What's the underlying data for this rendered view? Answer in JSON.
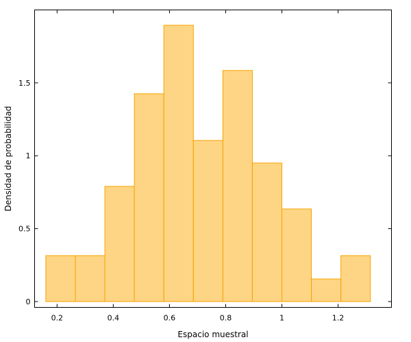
{
  "chart_data": {
    "type": "bar",
    "subtype": "histogram",
    "xlabel": "Espacio muestral",
    "ylabel": "Densidad de probabilidad",
    "xlim": [
      0.12,
      1.39
    ],
    "ylim": [
      -0.04,
      2.0
    ],
    "xticks": [
      0.2,
      0.4,
      0.6,
      0.8,
      1.0,
      1.2
    ],
    "xtick_labels": [
      "0.2",
      "0.4",
      "0.6",
      "0.8",
      "1",
      "1.2"
    ],
    "yticks": [
      0,
      0.5,
      1,
      1.5
    ],
    "ytick_labels": [
      "0",
      "0.5",
      "1",
      "1.5"
    ],
    "bins": [
      {
        "x0": 0.16,
        "x1": 0.265,
        "value": 0.315
      },
      {
        "x0": 0.265,
        "x1": 0.37,
        "value": 0.315
      },
      {
        "x0": 0.37,
        "x1": 0.475,
        "value": 0.79
      },
      {
        "x0": 0.475,
        "x1": 0.58,
        "value": 1.425
      },
      {
        "x0": 0.58,
        "x1": 0.685,
        "value": 1.895
      },
      {
        "x0": 0.685,
        "x1": 0.79,
        "value": 1.105
      },
      {
        "x0": 0.79,
        "x1": 0.895,
        "value": 1.585
      },
      {
        "x0": 0.895,
        "x1": 1.0,
        "value": 0.95
      },
      {
        "x0": 1.0,
        "x1": 1.105,
        "value": 0.635
      },
      {
        "x0": 1.105,
        "x1": 1.21,
        "value": 0.155
      },
      {
        "x0": 1.21,
        "x1": 1.315,
        "value": 0.315
      }
    ],
    "bar_fill": "#fed584",
    "bar_stroke": "#f5a300",
    "grid": false,
    "legend": "none"
  }
}
